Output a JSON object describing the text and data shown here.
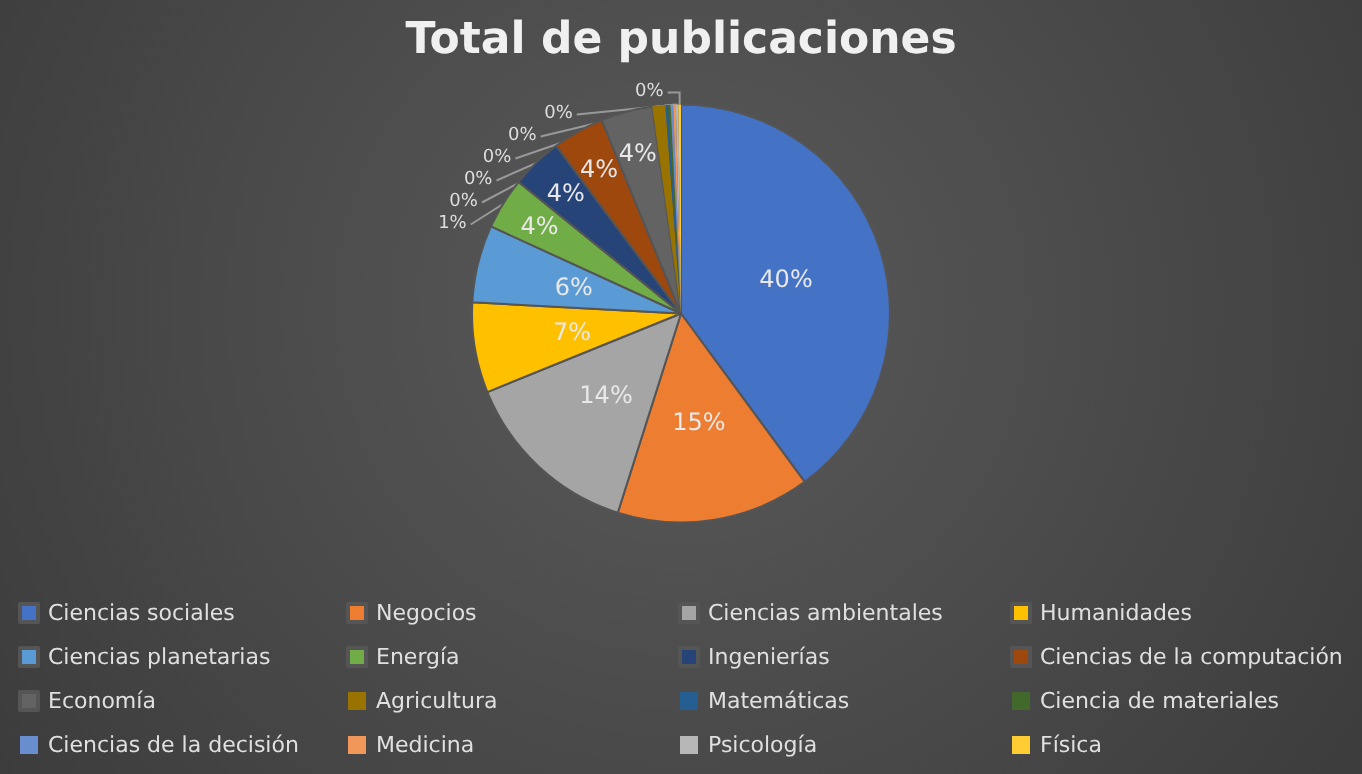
{
  "chart_data": {
    "type": "pie",
    "title": "Total de publicaciones",
    "categories": [
      "Ciencias sociales",
      "Negocios",
      "Ciencias ambientales",
      "Humanidades",
      "Ciencias planetarias",
      "Energía",
      "Ingenierías",
      "Ciencias de la computación",
      "Economía",
      "Agricultura",
      "Matemáticas",
      "Ciencia de materiales",
      "Ciencias de la decisión",
      "Medicina",
      "Psicología",
      "Física"
    ],
    "values": [
      40,
      15,
      14,
      7,
      6,
      4,
      4,
      4,
      4,
      1,
      0.2,
      0.2,
      0.2,
      0.2,
      0.2,
      0.2
    ],
    "value_labels": [
      "40%",
      "15%",
      "14%",
      "7%",
      "6%",
      "4%",
      "4%",
      "4%",
      "4%",
      "1%",
      "0%",
      "0%",
      "0%",
      "0%",
      "0%",
      "0%"
    ],
    "colors": [
      "#4472c4",
      "#ed7d31",
      "#a5a5a5",
      "#ffc000",
      "#5b9bd5",
      "#70ad47",
      "#264478",
      "#9e480e",
      "#636363",
      "#997300",
      "#255e91",
      "#43682b",
      "#698ed0",
      "#f1975a",
      "#b7b7b7",
      "#ffcd33"
    ],
    "legend": "bottom"
  }
}
